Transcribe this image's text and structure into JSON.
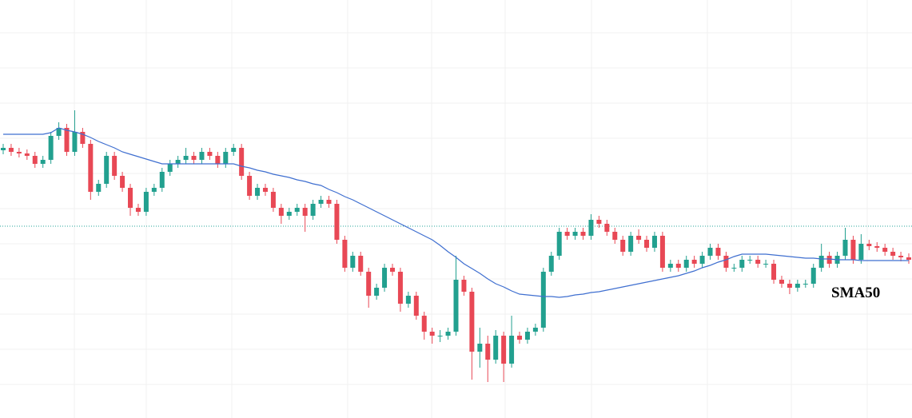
{
  "chart_data": {
    "type": "candlestick",
    "open": [
      335,
      338,
      333,
      331,
      328,
      318,
      323,
      353,
      363,
      333,
      358,
      343,
      283,
      293,
      328,
      303,
      288,
      263,
      258,
      283,
      288,
      308,
      318,
      323,
      328,
      323,
      333,
      328,
      318,
      333,
      338,
      303,
      278,
      288,
      283,
      263,
      253,
      258,
      263,
      253,
      268,
      273,
      268,
      223,
      188,
      203,
      183,
      153,
      163,
      188,
      183,
      143,
      153,
      128,
      108,
      103,
      103,
      108,
      173,
      158,
      83,
      93,
      73,
      103,
      68,
      103,
      98,
      108,
      113,
      183,
      203,
      233,
      228,
      233,
      228,
      248,
      243,
      233,
      223,
      208,
      228,
      223,
      213,
      228,
      188,
      193,
      188,
      198,
      193,
      203,
      213,
      203,
      188,
      188,
      198,
      198,
      193,
      193,
      173,
      168,
      163,
      168,
      168,
      188,
      203,
      193,
      203,
      223,
      198,
      218,
      215,
      213,
      208,
      203,
      201
    ],
    "high": [
      343,
      343,
      338,
      336,
      333,
      328,
      358,
      370,
      368,
      385,
      363,
      348,
      298,
      333,
      333,
      308,
      293,
      268,
      288,
      293,
      313,
      323,
      328,
      338,
      333,
      338,
      338,
      333,
      338,
      343,
      343,
      308,
      293,
      293,
      288,
      268,
      263,
      268,
      268,
      273,
      278,
      278,
      273,
      228,
      208,
      208,
      188,
      168,
      193,
      193,
      188,
      158,
      158,
      133,
      113,
      110,
      113,
      203,
      178,
      163,
      113,
      103,
      110,
      108,
      128,
      108,
      113,
      118,
      188,
      208,
      238,
      238,
      238,
      238,
      255,
      253,
      248,
      238,
      228,
      233,
      236,
      228,
      233,
      233,
      198,
      198,
      203,
      203,
      208,
      218,
      218,
      208,
      193,
      203,
      203,
      203,
      198,
      198,
      178,
      173,
      173,
      173,
      193,
      218,
      208,
      208,
      238,
      228,
      230,
      223,
      220,
      218,
      213,
      208,
      206
    ],
    "low": [
      330,
      328,
      326,
      323,
      313,
      313,
      318,
      348,
      328,
      328,
      338,
      273,
      278,
      288,
      298,
      283,
      253,
      253,
      253,
      278,
      283,
      303,
      313,
      318,
      318,
      318,
      323,
      313,
      313,
      328,
      298,
      273,
      273,
      278,
      258,
      243,
      248,
      253,
      233,
      248,
      263,
      263,
      218,
      183,
      183,
      178,
      138,
      148,
      158,
      178,
      133,
      138,
      123,
      98,
      93,
      95,
      98,
      103,
      153,
      48,
      63,
      45,
      68,
      45,
      63,
      93,
      93,
      103,
      108,
      178,
      198,
      223,
      223,
      223,
      223,
      238,
      228,
      218,
      203,
      203,
      218,
      208,
      208,
      183,
      183,
      183,
      183,
      188,
      188,
      198,
      198,
      183,
      183,
      183,
      193,
      188,
      188,
      168,
      163,
      155,
      158,
      163,
      163,
      183,
      188,
      188,
      198,
      193,
      193,
      210,
      208,
      203,
      198,
      196,
      193
    ],
    "close": [
      338,
      333,
      331,
      328,
      318,
      323,
      353,
      363,
      333,
      358,
      343,
      283,
      293,
      328,
      303,
      288,
      263,
      258,
      283,
      288,
      308,
      318,
      323,
      328,
      323,
      333,
      328,
      318,
      333,
      338,
      303,
      278,
      288,
      283,
      263,
      253,
      258,
      263,
      253,
      268,
      273,
      268,
      223,
      188,
      203,
      183,
      153,
      163,
      188,
      183,
      143,
      153,
      128,
      108,
      103,
      103,
      108,
      173,
      158,
      83,
      93,
      73,
      103,
      68,
      103,
      98,
      108,
      113,
      183,
      203,
      233,
      228,
      233,
      228,
      248,
      243,
      233,
      223,
      208,
      228,
      223,
      213,
      228,
      188,
      193,
      188,
      198,
      193,
      203,
      213,
      203,
      188,
      188,
      198,
      198,
      193,
      193,
      173,
      168,
      163,
      168,
      168,
      188,
      203,
      193,
      203,
      223,
      198,
      218,
      215,
      213,
      208,
      203,
      201,
      198
    ],
    "up_color": "#22a08f",
    "down_color": "#e84855",
    "sma": {
      "name": "SMA50",
      "color": "#3f6fd0",
      "values": [
        355,
        355,
        355,
        355,
        355,
        355,
        357,
        363,
        360,
        358,
        355,
        351,
        346,
        342,
        338,
        333,
        330,
        327,
        324,
        321,
        318,
        318,
        318,
        318,
        318,
        318,
        318,
        318,
        318,
        318,
        315,
        313,
        310,
        308,
        305,
        303,
        301,
        298,
        296,
        293,
        291,
        286,
        282,
        277,
        273,
        268,
        263,
        258,
        253,
        248,
        243,
        238,
        233,
        228,
        223,
        216,
        208,
        201,
        193,
        187,
        181,
        174,
        168,
        164,
        159,
        155,
        154,
        153,
        152,
        152,
        151,
        152,
        154,
        155,
        157,
        158,
        160,
        162,
        164,
        166,
        168,
        170,
        172,
        174,
        176,
        178,
        181,
        184,
        188,
        191,
        195,
        198,
        202,
        205,
        205,
        205,
        205,
        204,
        203,
        202,
        201,
        200,
        200,
        199,
        199,
        198,
        198,
        198,
        197,
        197,
        197,
        197,
        197,
        197,
        197
      ]
    },
    "price_line": 240,
    "price_line_color": "#26a69a",
    "ylim": [
      0,
      523
    ],
    "yticks": [
      42,
      86,
      130,
      174,
      218,
      262,
      306,
      350,
      394,
      438,
      482
    ],
    "grid": true
  }
}
